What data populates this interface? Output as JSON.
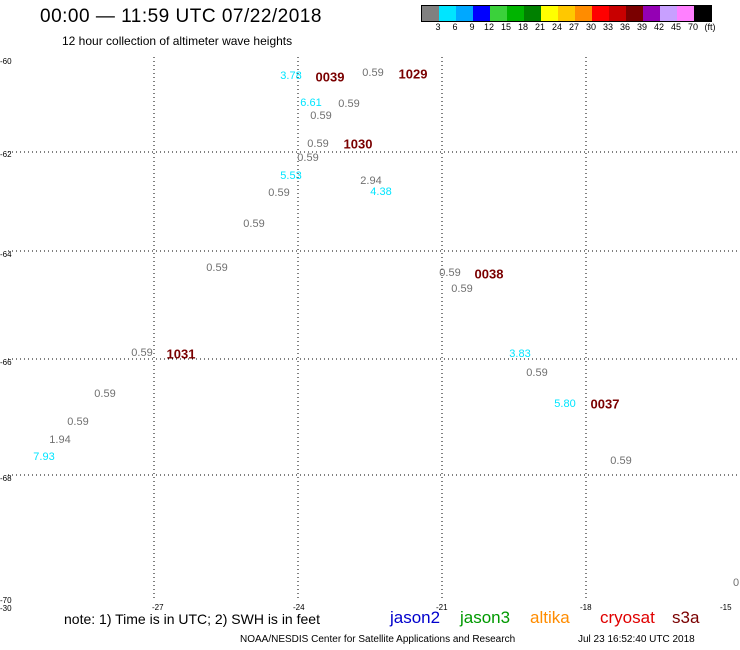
{
  "header": {
    "title": "00:00 — 11:59 UTC 07/22/2018",
    "subtitle": "12 hour collection of altimeter wave heights"
  },
  "colorbar": {
    "colors": [
      "#808080",
      "#00e5ff",
      "#00a8ff",
      "#0000ff",
      "#3bd13b",
      "#00b400",
      "#008000",
      "#ffff00",
      "#ffc800",
      "#ff8c00",
      "#ff0000",
      "#c80000",
      "#7a0000",
      "#9400b4",
      "#c8a0ff",
      "#ff80ff",
      "#000000"
    ],
    "labels": [
      "3",
      "6",
      "9",
      "12",
      "15",
      "18",
      "21",
      "24",
      "27",
      "30",
      "33",
      "36",
      "39",
      "42",
      "45",
      "70",
      "(ft)"
    ]
  },
  "map": {
    "lat_ticks": [
      "-60",
      "-62",
      "-64",
      "-66",
      "-68",
      "-70"
    ],
    "lon_ticks": [
      "-30",
      "-27",
      "-24",
      "-21",
      "-18",
      "-15"
    ],
    "passes": [
      {
        "label": "0039"
      },
      {
        "label": "1029"
      },
      {
        "label": "1030"
      },
      {
        "label": "0038"
      },
      {
        "label": "1031"
      },
      {
        "label": "0037"
      }
    ],
    "swh": [
      {
        "value": "3.78",
        "color": "#00e5ff"
      },
      {
        "value": "0.59",
        "color": "#707070"
      },
      {
        "value": "6.61",
        "color": "#00e5ff"
      },
      {
        "value": "0.59",
        "color": "#707070"
      },
      {
        "value": "0.59",
        "color": "#707070"
      },
      {
        "value": "0.59",
        "color": "#707070"
      },
      {
        "value": "0.59",
        "color": "#707070"
      },
      {
        "value": "5.53",
        "color": "#00e5ff"
      },
      {
        "value": "2.94",
        "color": "#707070"
      },
      {
        "value": "4.38",
        "color": "#00e5ff"
      },
      {
        "value": "0.59",
        "color": "#707070"
      },
      {
        "value": "0.59",
        "color": "#707070"
      },
      {
        "value": "0.59",
        "color": "#707070"
      },
      {
        "value": "0.59",
        "color": "#707070"
      },
      {
        "value": "0.59",
        "color": "#707070"
      },
      {
        "value": "0.59",
        "color": "#707070"
      },
      {
        "value": "3.83",
        "color": "#00e5ff"
      },
      {
        "value": "0.59",
        "color": "#707070"
      },
      {
        "value": "0.59",
        "color": "#707070"
      },
      {
        "value": "0.59",
        "color": "#707070"
      },
      {
        "value": "5.80",
        "color": "#00e5ff"
      },
      {
        "value": "1.94",
        "color": "#707070"
      },
      {
        "value": "7.93",
        "color": "#00e5ff"
      },
      {
        "value": "0.59",
        "color": "#707070"
      },
      {
        "value": "0",
        "color": "#707070"
      }
    ]
  },
  "footer": {
    "note": "note: 1) Time is in UTC; 2) SWH is in feet",
    "satellites": [
      {
        "name": "jason2",
        "color": "#0000cc"
      },
      {
        "name": "jason3",
        "color": "#009900"
      },
      {
        "name": "altika",
        "color": "#ff8c00"
      },
      {
        "name": "cryosat",
        "color": "#e00000"
      },
      {
        "name": "s3a",
        "color": "#7a0000"
      }
    ],
    "credit": "NOAA/NESDIS Center for Satellite Applications and Research",
    "timestamp": "Jul 23 16:52:40 UTC 2018"
  }
}
